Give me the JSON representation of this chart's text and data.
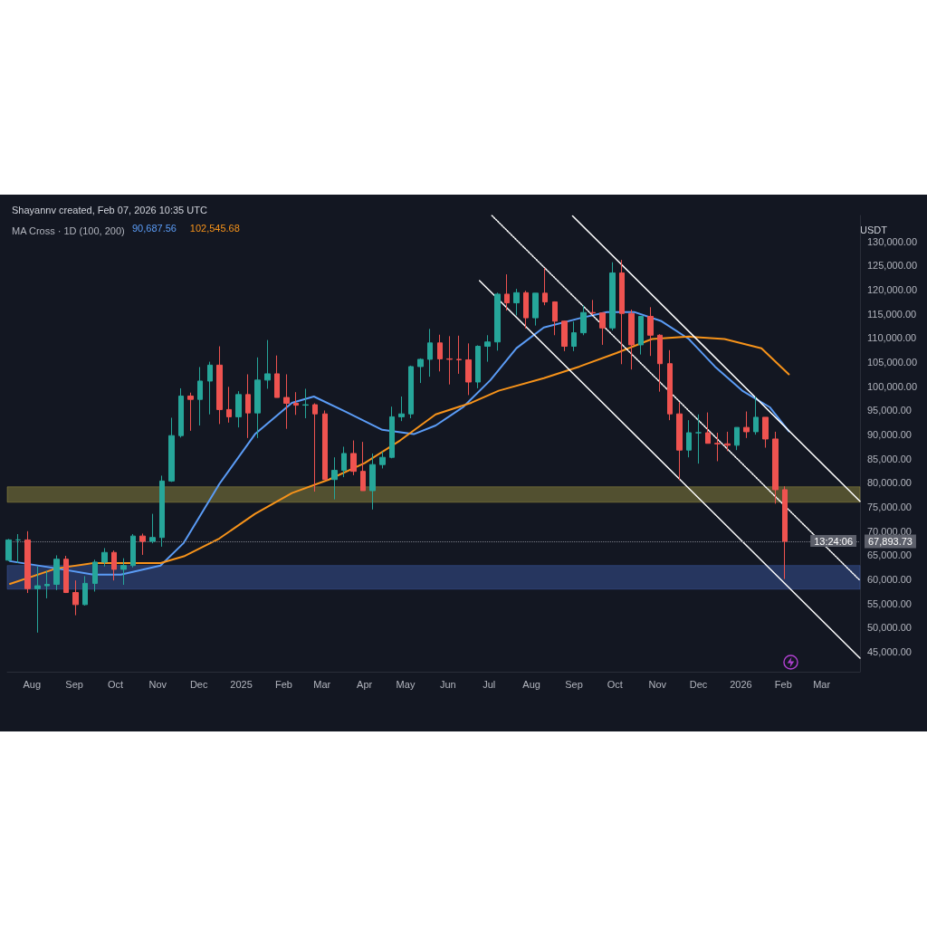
{
  "chart_data": {
    "type": "candlestick",
    "title": "Shayannv created, Feb 07, 2026 10:35 UTC",
    "subtitle": "MA Cross · 1D (100, 200)",
    "ylabel": "USDT",
    "x": [
      "2024-07-15",
      "2024-07-22",
      "2024-07-29",
      "2024-08-05",
      "2024-08-12",
      "2024-08-19",
      "2024-08-26",
      "2024-09-02",
      "2024-09-09",
      "2024-09-16",
      "2024-09-23",
      "2024-09-30",
      "2024-10-07",
      "2024-10-14",
      "2024-10-21",
      "2024-10-28",
      "2024-11-04",
      "2024-11-11",
      "2024-11-18",
      "2024-11-25",
      "2024-12-02",
      "2024-12-09",
      "2024-12-16",
      "2024-12-23",
      "2024-12-30",
      "2025-01-06",
      "2025-01-13",
      "2025-01-20",
      "2025-01-27",
      "2025-02-03",
      "2025-02-10",
      "2025-02-17",
      "2025-02-24",
      "2025-03-03",
      "2025-03-10",
      "2025-03-17",
      "2025-03-24",
      "2025-03-31",
      "2025-04-07",
      "2025-04-14",
      "2025-04-21",
      "2025-04-28",
      "2025-05-05",
      "2025-05-12",
      "2025-05-19",
      "2025-05-26",
      "2025-06-02",
      "2025-06-09",
      "2025-06-16",
      "2025-06-23",
      "2025-06-30",
      "2025-07-07",
      "2025-07-14",
      "2025-07-21",
      "2025-07-28",
      "2025-08-04",
      "2025-08-11",
      "2025-08-18",
      "2025-08-25",
      "2025-09-01",
      "2025-09-08",
      "2025-09-15",
      "2025-09-22",
      "2025-09-29",
      "2025-10-06",
      "2025-10-13",
      "2025-10-20",
      "2025-10-27",
      "2025-11-03",
      "2025-11-10",
      "2025-11-17",
      "2025-11-24",
      "2025-12-01",
      "2025-12-08",
      "2025-12-15",
      "2025-12-22",
      "2025-12-29",
      "2026-01-05",
      "2026-01-12",
      "2026-01-19",
      "2026-01-26",
      "2026-02-02"
    ],
    "ohlc": [
      [
        64000,
        68400,
        63800,
        68200
      ],
      [
        68200,
        69400,
        63400,
        68200
      ],
      [
        68200,
        70000,
        57200,
        58100
      ],
      [
        58100,
        62700,
        49000,
        58700
      ],
      [
        58700,
        61800,
        56100,
        59000
      ],
      [
        59000,
        65000,
        57800,
        64200
      ],
      [
        64200,
        64900,
        57200,
        57300
      ],
      [
        57300,
        59800,
        52600,
        54800
      ],
      [
        54800,
        60700,
        54600,
        59200
      ],
      [
        59200,
        64100,
        57500,
        63600
      ],
      [
        63600,
        66500,
        62700,
        65600
      ],
      [
        65600,
        66000,
        59800,
        62100
      ],
      [
        62100,
        64400,
        58900,
        62900
      ],
      [
        62900,
        69400,
        62500,
        69000
      ],
      [
        69000,
        69500,
        65100,
        67900
      ],
      [
        67900,
        73600,
        67500,
        68700
      ],
      [
        68700,
        81500,
        66800,
        80400
      ],
      [
        80400,
        93500,
        80200,
        89800
      ],
      [
        89800,
        99600,
        89400,
        98000
      ],
      [
        98000,
        98700,
        90800,
        97300
      ],
      [
        97300,
        104000,
        91900,
        101100
      ],
      [
        101100,
        105100,
        94200,
        104400
      ],
      [
        104400,
        108300,
        92200,
        95200
      ],
      [
        95200,
        99900,
        92500,
        93700
      ],
      [
        93700,
        99000,
        91500,
        98300
      ],
      [
        98300,
        102500,
        89300,
        94500
      ],
      [
        94500,
        106000,
        89300,
        101300
      ],
      [
        101300,
        109600,
        99500,
        102600
      ],
      [
        102600,
        106400,
        97700,
        97700
      ],
      [
        97700,
        102500,
        91200,
        96500
      ],
      [
        96500,
        98800,
        94100,
        96100
      ],
      [
        96100,
        99500,
        93400,
        96200
      ],
      [
        96200,
        96500,
        78200,
        94300
      ],
      [
        94300,
        95000,
        80700,
        80700
      ],
      [
        80700,
        85300,
        76600,
        82600
      ],
      [
        82600,
        87500,
        81200,
        86100
      ],
      [
        86100,
        88800,
        81600,
        82400
      ],
      [
        82400,
        88500,
        78400,
        78400
      ],
      [
        78400,
        86100,
        74500,
        83800
      ],
      [
        83800,
        86500,
        83000,
        85300
      ],
      [
        85300,
        95800,
        85100,
        93700
      ],
      [
        93700,
        97900,
        92800,
        94300
      ],
      [
        94300,
        104300,
        93400,
        104100
      ],
      [
        104100,
        105800,
        100700,
        105600
      ],
      [
        105600,
        111900,
        102000,
        109000
      ],
      [
        109000,
        110700,
        103100,
        105700
      ],
      [
        105700,
        110400,
        100400,
        105600
      ],
      [
        105600,
        110500,
        102600,
        105500
      ],
      [
        105500,
        108900,
        98200,
        100900
      ],
      [
        100900,
        108500,
        99600,
        108300
      ],
      [
        108300,
        110600,
        105100,
        109200
      ],
      [
        109200,
        119400,
        107400,
        119100
      ],
      [
        119100,
        123200,
        115700,
        117300
      ],
      [
        117300,
        120200,
        114700,
        119400
      ],
      [
        119400,
        119800,
        112000,
        114200
      ],
      [
        114200,
        119300,
        112600,
        119300
      ],
      [
        119300,
        124500,
        116800,
        117500
      ],
      [
        117500,
        117600,
        110600,
        113500
      ],
      [
        113500,
        113600,
        107300,
        108300
      ],
      [
        108300,
        113400,
        107300,
        111100
      ],
      [
        111100,
        116800,
        110600,
        115300
      ],
      [
        115300,
        117900,
        114800,
        115200
      ],
      [
        115200,
        115200,
        108600,
        112100
      ],
      [
        112100,
        125700,
        111600,
        123500
      ],
      [
        123500,
        126200,
        104600,
        115100
      ],
      [
        115100,
        115900,
        103500,
        108600
      ],
      [
        108600,
        114600,
        106600,
        114500
      ],
      [
        114500,
        116400,
        106300,
        110600
      ],
      [
        110600,
        110800,
        98900,
        104700
      ],
      [
        104700,
        107500,
        93000,
        94300
      ],
      [
        94300,
        96700,
        80600,
        86800
      ],
      [
        86800,
        93000,
        85300,
        90400
      ],
      [
        90400,
        94200,
        84000,
        90400
      ],
      [
        90400,
        94600,
        88200,
        88200
      ],
      [
        88200,
        90400,
        84500,
        88100
      ],
      [
        88100,
        90600,
        86600,
        87800
      ],
      [
        87800,
        91500,
        86800,
        91500
      ],
      [
        91500,
        94800,
        89300,
        90600
      ],
      [
        90600,
        97900,
        90000,
        93600
      ],
      [
        93600,
        93600,
        87300,
        89100
      ],
      [
        89100,
        90600,
        75700,
        78600
      ],
      [
        78600,
        79300,
        60100,
        67893.73
      ]
    ],
    "series": [
      {
        "type": "line",
        "name": "90,687.56",
        "color": "#5b9cf6",
        "x": [
          "2024-07-16",
          "2024-08-19",
          "2024-09-15",
          "2024-10-05",
          "2024-11-03",
          "2024-11-20",
          "2024-12-16",
          "2025-01-11",
          "2025-02-07",
          "2025-02-23",
          "2025-03-18",
          "2025-04-14",
          "2025-05-07",
          "2025-05-23",
          "2025-06-12",
          "2025-07-02",
          "2025-07-21",
          "2025-08-10",
          "2025-09-05",
          "2025-09-25",
          "2025-10-15",
          "2025-11-04",
          "2025-11-24",
          "2025-12-13",
          "2026-01-02",
          "2026-01-22",
          "2026-02-05"
        ],
        "values": [
          63800,
          62300,
          61000,
          61000,
          62900,
          67600,
          79800,
          90100,
          96600,
          97900,
          94800,
          91000,
          90100,
          91900,
          95700,
          101300,
          107900,
          112200,
          114100,
          115400,
          115400,
          113500,
          109800,
          104100,
          99100,
          95700,
          90700
        ]
      },
      {
        "type": "line",
        "name": "102,545.68",
        "color": "#f7931a",
        "x": [
          "2024-07-16",
          "2024-08-19",
          "2024-09-15",
          "2024-11-03",
          "2024-11-20",
          "2024-12-16",
          "2025-01-11",
          "2025-02-07",
          "2025-03-06",
          "2025-04-01",
          "2025-04-27",
          "2025-05-23",
          "2025-06-18",
          "2025-07-08",
          "2025-08-10",
          "2025-09-05",
          "2025-10-02",
          "2025-10-28",
          "2025-11-24",
          "2025-12-20",
          "2026-01-16",
          "2026-02-05"
        ],
        "values": [
          59100,
          62300,
          63400,
          63400,
          64800,
          68500,
          73600,
          77900,
          80700,
          84100,
          88800,
          94200,
          96600,
          99100,
          101700,
          104100,
          106900,
          109800,
          110300,
          109800,
          107900,
          102500
        ]
      },
      {
        "type": "line",
        "color": "#ffffff",
        "line_style": "solid",
        "x": [
          "2025-08-31",
          "2026-03-29"
        ],
        "values": [
          135300,
          76200
        ]
      },
      {
        "type": "line",
        "color": "#ffffff",
        "line_style": "dotted",
        "x": [
          "2025-07-03",
          "2026-03-29"
        ],
        "values": [
          135400,
          59800
        ]
      },
      {
        "type": "line",
        "color": "#ffffff",
        "line_style": "solid",
        "x": [
          "2025-06-24",
          "2026-03-29"
        ],
        "values": [
          121900,
          43700
        ]
      }
    ],
    "bands": [
      {
        "axis": "y",
        "from": 76000,
        "to": 79200,
        "color": "#c8b94a"
      },
      {
        "axis": "y",
        "from": 58000,
        "to": 62900,
        "color": "#4a6fd0"
      }
    ],
    "ref_lines": [
      {
        "axis": "y",
        "value": 67893.73,
        "label": "67,893.73",
        "color": "#787b86",
        "line_style": "dotted"
      }
    ],
    "annotations": [
      "13:24:06"
    ],
    "xlim": [
      "2024-07-14",
      "2026-03-29"
    ],
    "xticks": [
      {
        "value": "2024-08-01",
        "label": "Aug"
      },
      {
        "value": "2024-09-01",
        "label": "Sep"
      },
      {
        "value": "2024-10-01",
        "label": "Oct"
      },
      {
        "value": "2024-11-01",
        "label": "Nov"
      },
      {
        "value": "2024-12-01",
        "label": "Dec"
      },
      {
        "value": "2025-01-01",
        "label": "2025"
      },
      {
        "value": "2025-02-01",
        "label": "Feb"
      },
      {
        "value": "2025-03-01",
        "label": "Mar"
      },
      {
        "value": "2025-04-01",
        "label": "Apr"
      },
      {
        "value": "2025-05-01",
        "label": "May"
      },
      {
        "value": "2025-06-01",
        "label": "Jun"
      },
      {
        "value": "2025-07-01",
        "label": "Jul"
      },
      {
        "value": "2025-08-01",
        "label": "Aug"
      },
      {
        "value": "2025-09-01",
        "label": "Sep"
      },
      {
        "value": "2025-10-01",
        "label": "Oct"
      },
      {
        "value": "2025-11-01",
        "label": "Nov"
      },
      {
        "value": "2025-12-01",
        "label": "Dec"
      },
      {
        "value": "2026-01-01",
        "label": "2026"
      },
      {
        "value": "2026-02-01",
        "label": "Feb"
      },
      {
        "value": "2026-03-01",
        "label": "Mar"
      }
    ],
    "ylim": [
      40900,
      135400
    ],
    "yticks": [
      {
        "value": 45000,
        "label": "45,000.00"
      },
      {
        "value": 50000,
        "label": "50,000.00"
      },
      {
        "value": 55000,
        "label": "55,000.00"
      },
      {
        "value": 60000,
        "label": "60,000.00"
      },
      {
        "value": 65000,
        "label": "65,000.00"
      },
      {
        "value": 70000,
        "label": "70,000.00"
      },
      {
        "value": 75000,
        "label": "75,000.00"
      },
      {
        "value": 80000,
        "label": "80,000.00"
      },
      {
        "value": 85000,
        "label": "85,000.00"
      },
      {
        "value": 90000,
        "label": "90,000.00"
      },
      {
        "value": 95000,
        "label": "95,000.00"
      },
      {
        "value": 100000,
        "label": "100,000.00"
      },
      {
        "value": 105000,
        "label": "105,000.00"
      },
      {
        "value": 110000,
        "label": "110,000.00"
      },
      {
        "value": 115000,
        "label": "115,000.00"
      },
      {
        "value": 120000,
        "label": "120,000.00"
      },
      {
        "value": 125000,
        "label": "125,000.00"
      },
      {
        "value": 130000,
        "label": "130,000.00"
      }
    ]
  }
}
